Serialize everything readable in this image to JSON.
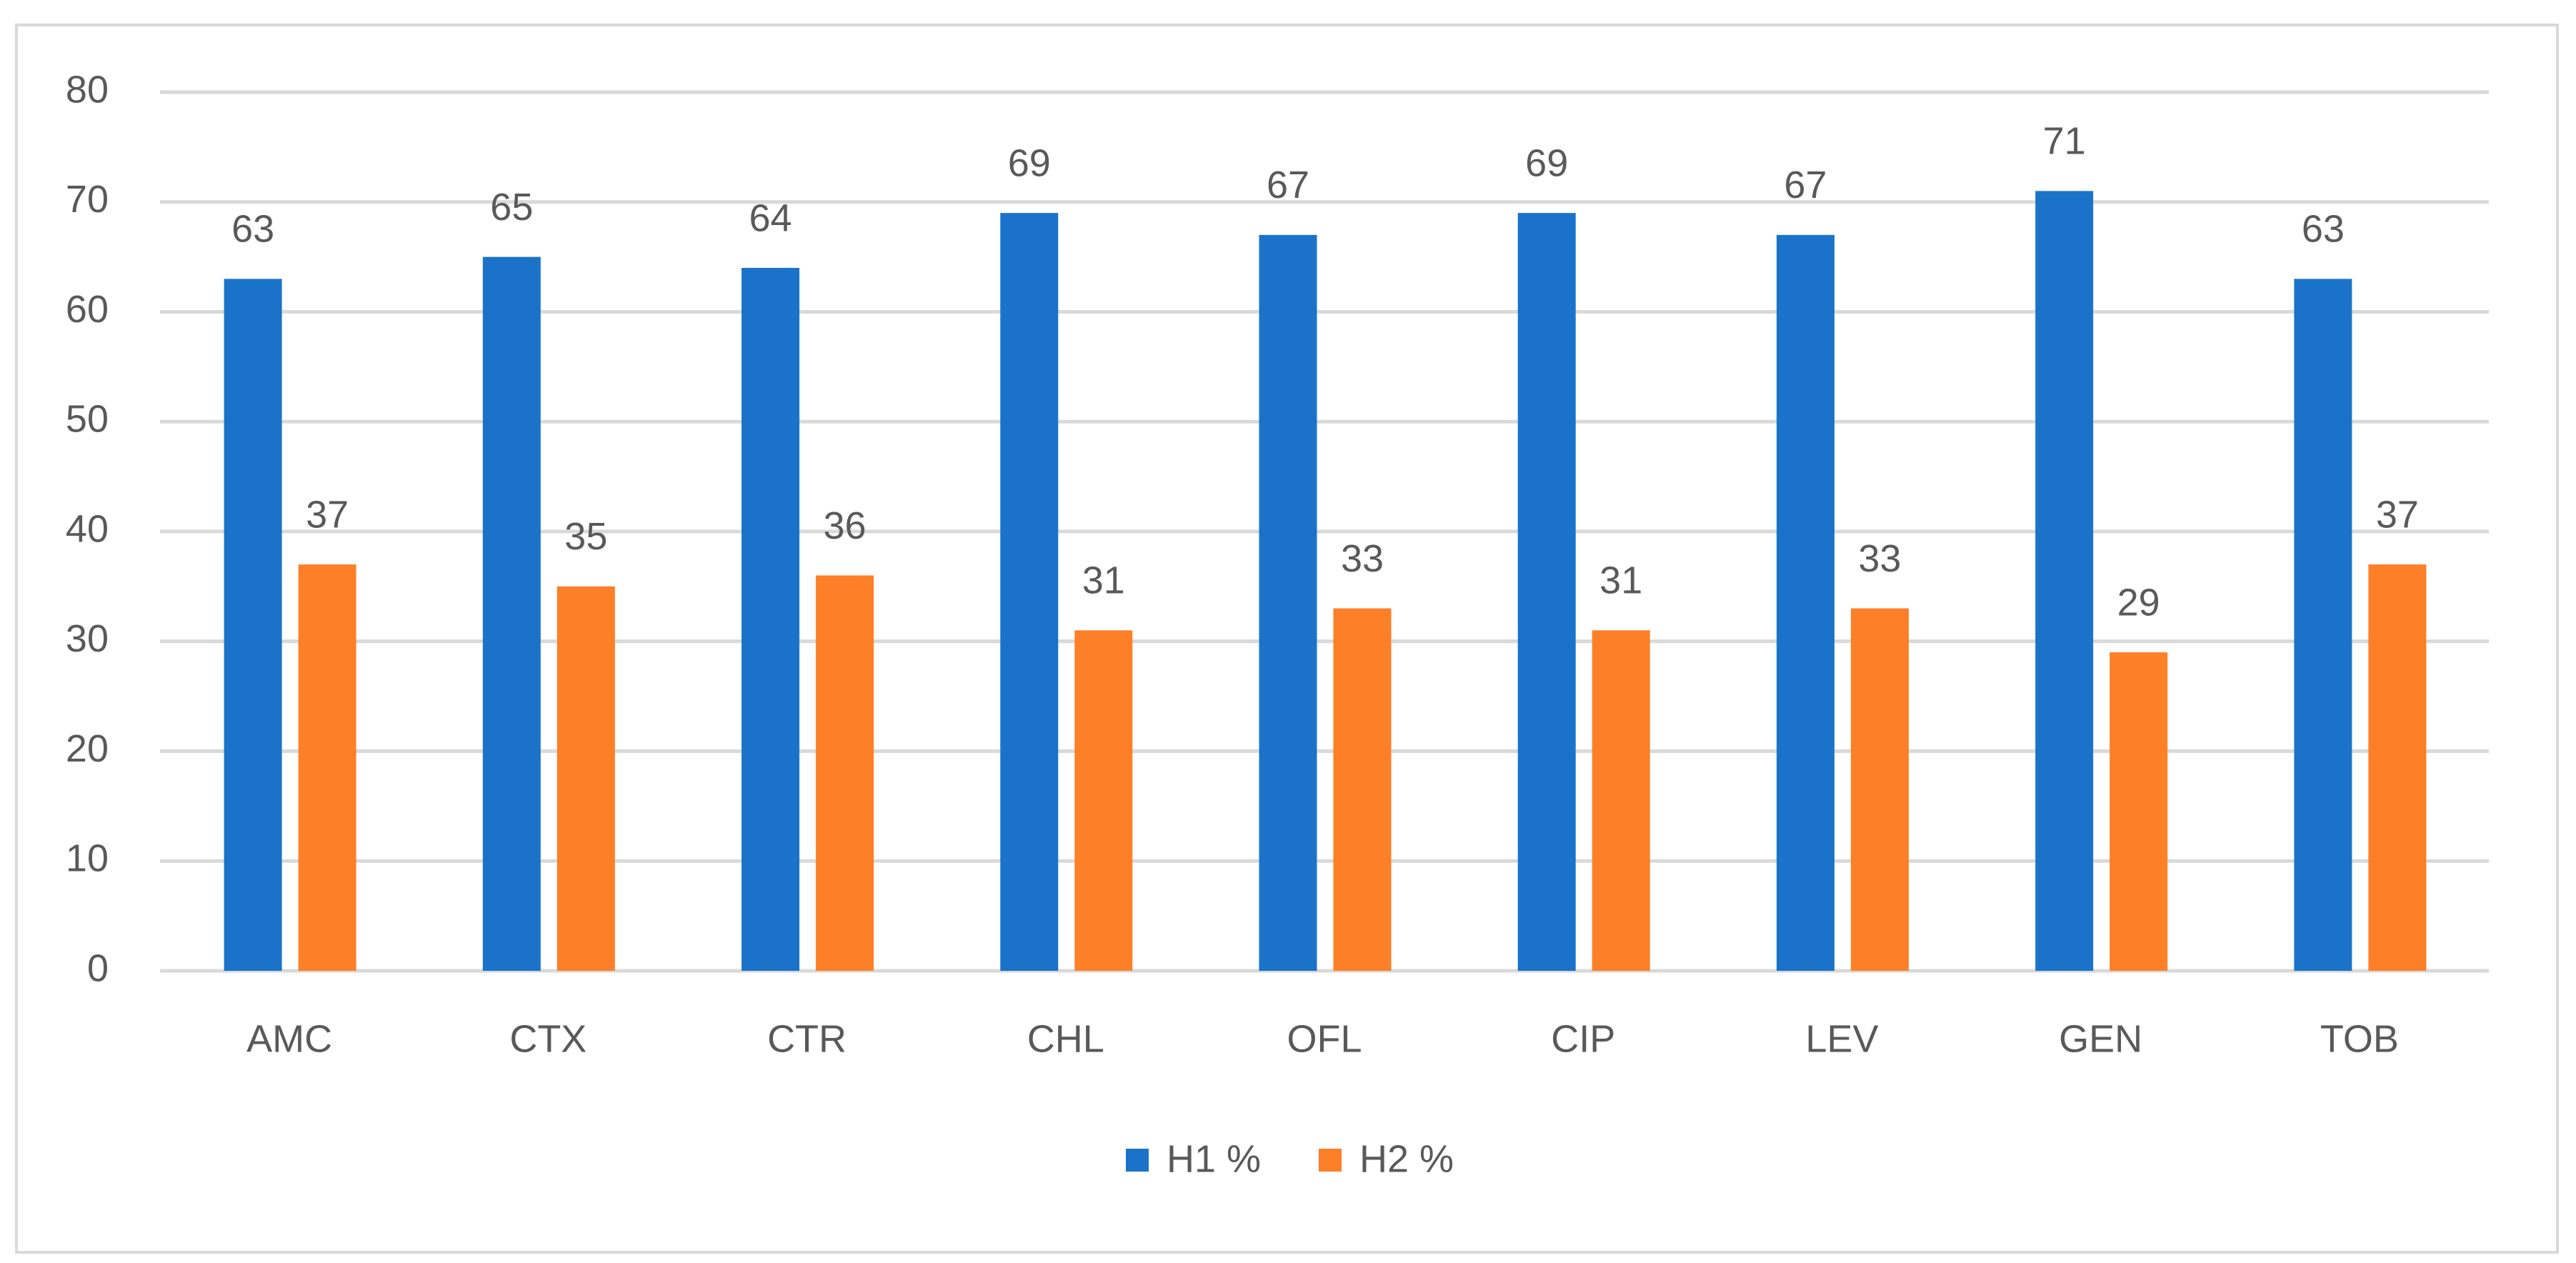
{
  "chart_data": {
    "type": "bar",
    "categories": [
      "AMC",
      "CTX",
      "CTR",
      "CHL",
      "OFL",
      "CIP",
      "LEV",
      "GEN",
      "TOB"
    ],
    "series": [
      {
        "name": "H1 %",
        "color": "#1a73c9",
        "values": [
          63,
          65,
          64,
          69,
          67,
          69,
          67,
          71,
          63
        ]
      },
      {
        "name": "H2 %",
        "color": "#fd7f28",
        "values": [
          37,
          35,
          36,
          31,
          33,
          31,
          33,
          29,
          37
        ]
      }
    ],
    "ylim": [
      0,
      80
    ],
    "yticks": [
      0,
      10,
      20,
      30,
      40,
      50,
      60,
      70,
      80
    ],
    "grid": true,
    "legend": "bottom"
  }
}
